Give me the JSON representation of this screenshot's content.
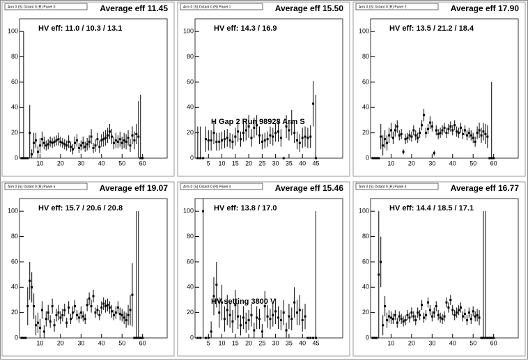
{
  "chart_data": [
    {
      "type": "scatter",
      "title": "Arm 0 (S) Octant 0 (R) Panel 0",
      "subtitle": "Average eff 11.45",
      "annotation": "HV eff:  11.0 / 10.3 / 13.1",
      "xlim": [
        0,
        72
      ],
      "ylim": [
        0,
        110
      ],
      "xticks": [
        10,
        20,
        30,
        40,
        50,
        60
      ],
      "yticks": [
        0,
        20,
        40,
        60,
        80,
        100
      ],
      "color": "#000000",
      "x": [
        1,
        2,
        3,
        4,
        5,
        6,
        7,
        8,
        9,
        10,
        11,
        12,
        13,
        14,
        15,
        16,
        17,
        18,
        19,
        20,
        21,
        22,
        23,
        24,
        25,
        26,
        27,
        28,
        29,
        30,
        31,
        32,
        33,
        34,
        35,
        36,
        37,
        38,
        39,
        40,
        41,
        42,
        43,
        44,
        45,
        46,
        47,
        48,
        49,
        50,
        51,
        52,
        53,
        54,
        55,
        56,
        57,
        58,
        59,
        60
      ],
      "values": [
        0,
        0,
        0,
        0,
        20,
        3,
        12,
        14,
        5,
        10,
        15,
        12,
        10,
        11,
        13,
        12,
        13,
        14,
        15,
        13,
        12,
        11,
        10,
        13,
        9,
        7,
        12,
        14,
        8,
        10,
        12,
        9,
        11,
        13,
        17,
        8,
        10,
        15,
        9,
        14,
        15,
        16,
        18,
        21,
        17,
        12,
        14,
        13,
        15,
        12,
        14,
        13,
        16,
        10,
        18,
        14,
        19,
        17,
        0,
        0
      ],
      "errors": [
        0,
        100,
        0,
        0,
        22,
        4,
        8,
        6,
        5,
        6,
        6,
        5,
        4,
        4,
        4,
        4,
        4,
        4,
        5,
        4,
        4,
        4,
        4,
        5,
        4,
        4,
        5,
        5,
        4,
        4,
        5,
        4,
        5,
        5,
        6,
        4,
        5,
        5,
        5,
        5,
        6,
        6,
        6,
        6,
        6,
        5,
        6,
        5,
        6,
        5,
        6,
        6,
        6,
        5,
        7,
        7,
        8,
        28,
        50,
        0
      ]
    },
    {
      "type": "scatter",
      "title": "Arm 0 (S) Octant 0 (R) Panel 1",
      "subtitle": "Average eff 15.50",
      "annotation": "HV eff:   14.3 / 16.9",
      "note": "H Gap 2 Run 98928 Arm S",
      "xlim": [
        0,
        55
      ],
      "ylim": [
        0,
        110
      ],
      "xticks": [
        5,
        10,
        15,
        20,
        25,
        30,
        35,
        40,
        45
      ],
      "yticks": [
        0,
        20,
        40,
        60,
        80,
        100
      ],
      "color": "#000000",
      "x": [
        1,
        2,
        3,
        4,
        5,
        6,
        7,
        8,
        9,
        10,
        11,
        12,
        13,
        14,
        15,
        16,
        17,
        18,
        19,
        20,
        21,
        22,
        23,
        24,
        25,
        26,
        27,
        28,
        29,
        30,
        31,
        32,
        33,
        34,
        35,
        36,
        37,
        38,
        39,
        40,
        41,
        42,
        43,
        44,
        45
      ],
      "values": [
        0,
        0,
        0,
        15,
        14,
        14,
        20,
        13,
        13,
        14,
        15,
        16,
        14,
        13,
        17,
        21,
        15,
        20,
        22,
        25,
        16,
        24,
        26,
        18,
        13,
        14,
        15,
        18,
        17,
        20,
        21,
        16,
        0,
        25,
        22,
        28,
        20,
        14,
        12,
        16,
        17,
        16,
        17,
        43,
        0
      ],
      "errors": [
        25,
        25,
        0,
        10,
        8,
        8,
        9,
        7,
        7,
        7,
        7,
        7,
        6,
        6,
        7,
        8,
        6,
        7,
        8,
        9,
        7,
        8,
        8,
        7,
        6,
        6,
        6,
        7,
        7,
        7,
        8,
        7,
        0,
        9,
        8,
        10,
        8,
        7,
        7,
        8,
        8,
        8,
        9,
        18,
        50
      ]
    },
    {
      "type": "scatter",
      "title": "Arm 0 (S) Octant 0 (R) Panel 2",
      "subtitle": "Average eff 17.90",
      "annotation": "HV eff:   13.5 / 21.2 / 18.4",
      "xlim": [
        0,
        72
      ],
      "ylim": [
        0,
        110
      ],
      "xticks": [
        10,
        20,
        30,
        40,
        50,
        60
      ],
      "yticks": [
        0,
        20,
        40,
        60,
        80,
        100
      ],
      "color": "#000000",
      "x": [
        1,
        2,
        3,
        4,
        5,
        6,
        7,
        8,
        9,
        10,
        11,
        12,
        13,
        14,
        15,
        16,
        17,
        18,
        19,
        20,
        21,
        22,
        23,
        24,
        25,
        26,
        27,
        28,
        29,
        30,
        31,
        32,
        33,
        34,
        35,
        36,
        37,
        38,
        39,
        40,
        41,
        42,
        43,
        44,
        45,
        46,
        47,
        48,
        49,
        50,
        51,
        52,
        53,
        54,
        55,
        56,
        57,
        58,
        59,
        60
      ],
      "values": [
        0,
        0,
        0,
        0,
        17,
        10,
        15,
        12,
        18,
        22,
        16,
        22,
        25,
        18,
        19,
        5,
        15,
        16,
        18,
        17,
        22,
        18,
        16,
        20,
        26,
        34,
        20,
        23,
        28,
        25,
        4,
        22,
        19,
        20,
        22,
        24,
        20,
        23,
        25,
        22,
        26,
        21,
        20,
        24,
        19,
        22,
        18,
        20,
        18,
        16,
        13,
        20,
        22,
        18,
        21,
        19,
        17,
        0,
        0,
        0
      ],
      "errors": [
        0,
        0,
        0,
        0,
        10,
        8,
        7,
        6,
        6,
        6,
        5,
        5,
        5,
        4,
        4,
        2,
        4,
        4,
        4,
        4,
        4,
        4,
        4,
        4,
        4,
        5,
        4,
        4,
        5,
        4,
        2,
        4,
        4,
        4,
        4,
        4,
        4,
        4,
        4,
        4,
        4,
        4,
        4,
        4,
        4,
        4,
        4,
        4,
        4,
        4,
        4,
        5,
        6,
        6,
        7,
        8,
        9,
        0,
        60,
        0
      ]
    },
    {
      "type": "scatter",
      "title": "Arm 0 (S) Octant 0 (R) Panel 5",
      "subtitle": "Average eff 19.07",
      "annotation": "HV eff:   15.7 / 20.6 / 20.8",
      "xlim": [
        0,
        72
      ],
      "ylim": [
        0,
        110
      ],
      "xticks": [
        10,
        20,
        30,
        40,
        50,
        60
      ],
      "yticks": [
        0,
        20,
        40,
        60,
        80,
        100
      ],
      "color": "#000000",
      "x": [
        1,
        2,
        3,
        4,
        5,
        6,
        7,
        8,
        9,
        10,
        11,
        12,
        13,
        14,
        15,
        16,
        17,
        18,
        19,
        20,
        21,
        22,
        23,
        24,
        25,
        26,
        27,
        28,
        29,
        30,
        31,
        32,
        33,
        34,
        35,
        36,
        37,
        38,
        39,
        40,
        41,
        42,
        43,
        44,
        45,
        46,
        47,
        48,
        49,
        50,
        51,
        52,
        53,
        54,
        55,
        56,
        57,
        58,
        59,
        60
      ],
      "values": [
        0,
        0,
        0,
        25,
        45,
        40,
        25,
        10,
        12,
        8,
        22,
        5,
        15,
        20,
        13,
        25,
        10,
        18,
        20,
        16,
        18,
        22,
        12,
        24,
        15,
        20,
        25,
        18,
        16,
        20,
        17,
        15,
        26,
        31,
        25,
        33,
        20,
        22,
        18,
        24,
        27,
        25,
        26,
        24,
        21,
        18,
        20,
        24,
        19,
        18,
        16,
        14,
        18,
        22,
        34,
        0,
        0,
        0,
        0,
        0
      ],
      "errors": [
        0,
        0,
        0,
        15,
        15,
        12,
        10,
        8,
        8,
        7,
        7,
        5,
        6,
        6,
        5,
        6,
        5,
        5,
        6,
        5,
        5,
        5,
        4,
        5,
        4,
        5,
        5,
        4,
        4,
        5,
        4,
        4,
        5,
        5,
        5,
        5,
        4,
        4,
        4,
        5,
        5,
        5,
        5,
        5,
        5,
        4,
        5,
        5,
        5,
        5,
        5,
        6,
        8,
        12,
        25,
        0,
        100,
        100,
        0,
        0
      ]
    },
    {
      "type": "scatter",
      "title": "Arm 0 (S) Octant 0 (R) Panel 4",
      "subtitle": "Average eff 15.46",
      "annotation": "HV eff:   13.8 / 17.0",
      "note": "HV setting 3800 V",
      "xlim": [
        0,
        55
      ],
      "ylim": [
        0,
        110
      ],
      "xticks": [
        5,
        10,
        15,
        20,
        25,
        30,
        35,
        40,
        45
      ],
      "yticks": [
        0,
        20,
        40,
        60,
        80,
        100
      ],
      "color": "#000000",
      "x": [
        1,
        2,
        3,
        4,
        5,
        6,
        7,
        8,
        9,
        10,
        11,
        12,
        13,
        14,
        15,
        16,
        17,
        18,
        19,
        20,
        21,
        22,
        23,
        24,
        25,
        26,
        27,
        28,
        29,
        30,
        31,
        32,
        33,
        34,
        35,
        36,
        37,
        38,
        39,
        40,
        41,
        42,
        43,
        44,
        45
      ],
      "values": [
        0,
        0,
        100,
        0,
        0,
        5,
        33,
        42,
        20,
        28,
        15,
        22,
        18,
        13,
        26,
        17,
        10,
        16,
        12,
        14,
        18,
        6,
        16,
        15,
        5,
        25,
        17,
        15,
        18,
        21,
        16,
        14,
        20,
        6,
        17,
        15,
        28,
        20,
        22,
        14,
        17,
        0,
        0,
        0,
        0
      ],
      "errors": [
        0,
        0,
        100,
        0,
        0,
        8,
        15,
        18,
        12,
        14,
        10,
        12,
        10,
        9,
        12,
        10,
        8,
        9,
        8,
        8,
        9,
        6,
        9,
        8,
        6,
        12,
        9,
        8,
        9,
        10,
        9,
        8,
        10,
        6,
        10,
        9,
        12,
        10,
        12,
        9,
        10,
        0,
        0,
        0,
        100
      ]
    },
    {
      "type": "scatter",
      "title": "Arm 0 (S) Octant 0 (R) Panel 3",
      "subtitle": "Average eff 16.77",
      "annotation": "HV eff:   14.4 / 18.5 / 17.1",
      "xlim": [
        0,
        72
      ],
      "ylim": [
        0,
        110
      ],
      "xticks": [
        10,
        20,
        30,
        40,
        50,
        60
      ],
      "yticks": [
        0,
        20,
        40,
        60,
        80,
        100
      ],
      "color": "#000000",
      "x": [
        1,
        2,
        3,
        4,
        5,
        6,
        7,
        8,
        9,
        10,
        11,
        12,
        13,
        14,
        15,
        16,
        17,
        18,
        19,
        20,
        21,
        22,
        23,
        24,
        25,
        26,
        27,
        28,
        29,
        30,
        31,
        32,
        33,
        34,
        35,
        36,
        37,
        38,
        39,
        40,
        41,
        42,
        43,
        44,
        45,
        46,
        47,
        48,
        49,
        50,
        51,
        52,
        53,
        54,
        55,
        56,
        57,
        58,
        59,
        60
      ],
      "values": [
        0,
        0,
        0,
        50,
        60,
        10,
        25,
        14,
        17,
        16,
        15,
        18,
        12,
        17,
        15,
        13,
        14,
        18,
        16,
        20,
        17,
        14,
        20,
        18,
        26,
        16,
        18,
        28,
        22,
        17,
        20,
        25,
        18,
        16,
        15,
        17,
        28,
        24,
        30,
        22,
        18,
        20,
        22,
        24,
        17,
        19,
        14,
        20,
        15,
        21,
        17,
        18,
        16,
        0,
        0,
        0,
        0,
        0,
        0,
        0
      ],
      "errors": [
        0,
        0,
        0,
        50,
        20,
        8,
        8,
        6,
        5,
        5,
        4,
        4,
        4,
        4,
        4,
        4,
        4,
        4,
        4,
        4,
        4,
        4,
        4,
        4,
        4,
        4,
        4,
        4,
        4,
        4,
        4,
        4,
        4,
        4,
        4,
        4,
        4,
        4,
        4,
        4,
        4,
        4,
        4,
        4,
        4,
        4,
        4,
        4,
        4,
        4,
        4,
        5,
        6,
        0,
        100,
        100,
        0,
        0,
        0,
        0
      ]
    }
  ]
}
